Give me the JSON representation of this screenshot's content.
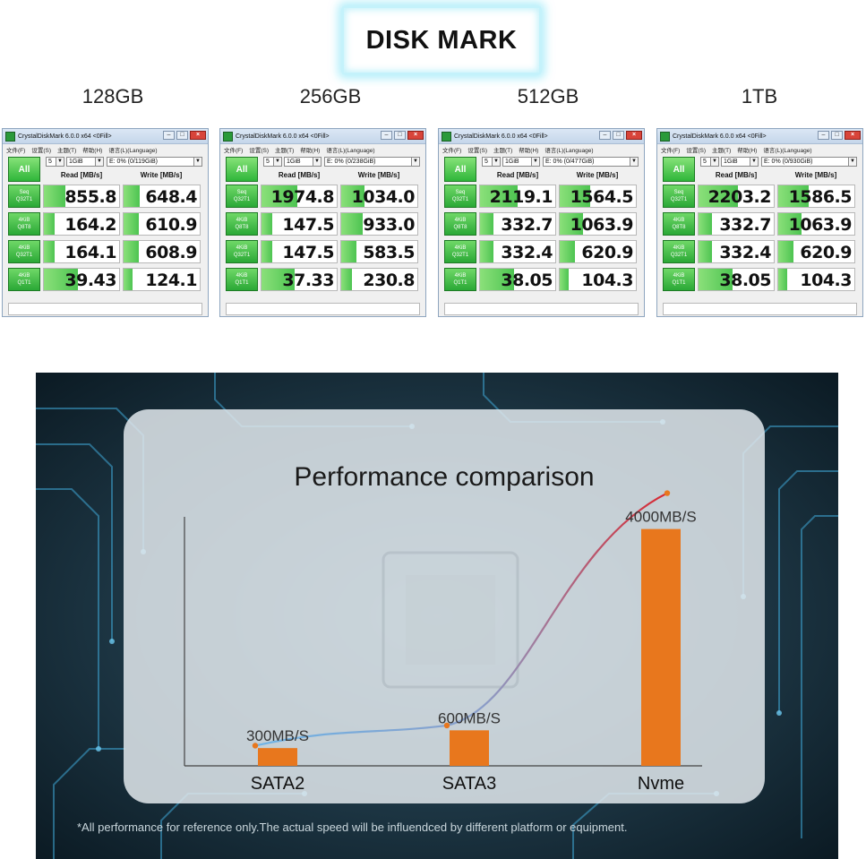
{
  "header": {
    "title": "DISK MARK"
  },
  "windows": [
    {
      "caption": "128GB",
      "title": "CrystalDiskMark 6.0.0 x64 <0Fill>",
      "menu": [
        "文件(F)",
        "设置(S)",
        "主题(T)",
        "帮助(H)",
        "语言(L)(Language)"
      ],
      "all_button": "All",
      "count": "5",
      "size": "1GiB",
      "drive": "E: 0% (0/119GiB)",
      "read_header": "Read [MB/s]",
      "write_header": "Write [MB/s]",
      "rows": [
        {
          "label1": "Seq",
          "label2": "Q32T1",
          "read": "855.8",
          "write": "648.4",
          "read_fill": 0.28,
          "write_fill": 0.21
        },
        {
          "label1": "4KiB",
          "label2": "Q8T8",
          "read": "164.2",
          "write": "610.9",
          "read_fill": 0.14,
          "write_fill": 0.2
        },
        {
          "label1": "4KiB",
          "label2": "Q32T1",
          "read": "164.1",
          "write": "608.9",
          "read_fill": 0.14,
          "write_fill": 0.2
        },
        {
          "label1": "4KiB",
          "label2": "Q1T1",
          "read": "39.43",
          "write": "124.1",
          "read_fill": 0.45,
          "write_fill": 0.12
        }
      ]
    },
    {
      "caption": "256GB",
      "title": "CrystalDiskMark 6.0.0 x64 <0Fill>",
      "menu": [
        "文件(F)",
        "设置(S)",
        "主题(T)",
        "帮助(H)",
        "语言(L)(Language)"
      ],
      "all_button": "All",
      "count": "5",
      "size": "1GiB",
      "drive": "E: 0% (0/238GiB)",
      "read_header": "Read [MB/s]",
      "write_header": "Write [MB/s]",
      "rows": [
        {
          "label1": "Seq",
          "label2": "Q32T1",
          "read": "1974.8",
          "write": "1034.0",
          "read_fill": 0.48,
          "write_fill": 0.3
        },
        {
          "label1": "4KiB",
          "label2": "Q8T8",
          "read": "147.5",
          "write": "933.0",
          "read_fill": 0.14,
          "write_fill": 0.28
        },
        {
          "label1": "4KiB",
          "label2": "Q32T1",
          "read": "147.5",
          "write": "583.5",
          "read_fill": 0.14,
          "write_fill": 0.2
        },
        {
          "label1": "4KiB",
          "label2": "Q1T1",
          "read": "37.33",
          "write": "230.8",
          "read_fill": 0.44,
          "write_fill": 0.14
        }
      ]
    },
    {
      "caption": "512GB",
      "title": "CrystalDiskMark 6.0.0 x64 <0Fill>",
      "menu": [
        "文件(F)",
        "设置(S)",
        "主题(T)",
        "帮助(H)",
        "语言(L)(Language)"
      ],
      "all_button": "All",
      "count": "5",
      "size": "1GiB",
      "drive": "E: 0% (0/477GiB)",
      "read_header": "Read [MB/s]",
      "write_header": "Write [MB/s]",
      "rows": [
        {
          "label1": "Seq",
          "label2": "Q32T1",
          "read": "2119.1",
          "write": "1564.5",
          "read_fill": 0.5,
          "write_fill": 0.4
        },
        {
          "label1": "4KiB",
          "label2": "Q8T8",
          "read": "332.7",
          "write": "1063.9",
          "read_fill": 0.18,
          "write_fill": 0.3
        },
        {
          "label1": "4KiB",
          "label2": "Q32T1",
          "read": "332.4",
          "write": "620.9",
          "read_fill": 0.18,
          "write_fill": 0.2
        },
        {
          "label1": "4KiB",
          "label2": "Q1T1",
          "read": "38.05",
          "write": "104.3",
          "read_fill": 0.45,
          "write_fill": 0.12
        }
      ]
    },
    {
      "caption": "1TB",
      "title": "CrystalDiskMark 6.0.0 x64 <0Fill>",
      "menu": [
        "文件(F)",
        "设置(S)",
        "主题(T)",
        "帮助(H)",
        "语言(L)(Language)"
      ],
      "all_button": "All",
      "count": "5",
      "size": "1GiB",
      "drive": "E: 0% (0/930GiB)",
      "read_header": "Read [MB/s]",
      "write_header": "Write [MB/s]",
      "rows": [
        {
          "label1": "Seq",
          "label2": "Q32T1",
          "read": "2203.2",
          "write": "1586.5",
          "read_fill": 0.52,
          "write_fill": 0.4
        },
        {
          "label1": "4KiB",
          "label2": "Q8T8",
          "read": "332.7",
          "write": "1063.9",
          "read_fill": 0.18,
          "write_fill": 0.3
        },
        {
          "label1": "4KiB",
          "label2": "Q32T1",
          "read": "332.4",
          "write": "620.9",
          "read_fill": 0.18,
          "write_fill": 0.2
        },
        {
          "label1": "4KiB",
          "label2": "Q1T1",
          "read": "38.05",
          "write": "104.3",
          "read_fill": 0.45,
          "write_fill": 0.12
        }
      ]
    }
  ],
  "chart_data": {
    "type": "bar",
    "title": "Performance comparison",
    "categories": [
      "SATA2",
      "SATA3",
      "Nvme"
    ],
    "values": [
      300,
      600,
      4000
    ],
    "data_labels": [
      "300MB/S",
      "600MB/S",
      "4000MB/S"
    ],
    "ylim": [
      0,
      4500
    ],
    "grid": false,
    "bar_color": "#e8771d",
    "trend_line_colors": [
      "#6fb4e6",
      "#d9262f"
    ]
  },
  "footnote": "*All performance for reference only.The actual speed will be influendced by different platform or equipment."
}
